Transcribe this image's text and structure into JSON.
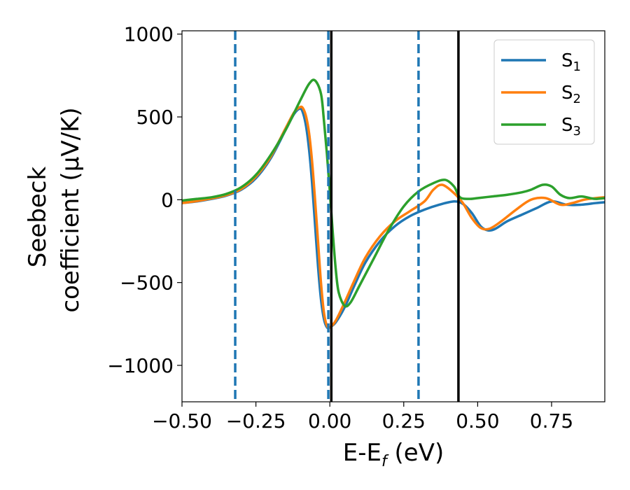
{
  "chart_data": {
    "type": "line",
    "xlabel": "E-E",
    "xlabel_sub": "f",
    "xlabel_unit": " (eV)",
    "ylabel_line1": "Seebeck",
    "ylabel_line2": "coefficient  (μV/K)",
    "xlim": [
      -0.5,
      0.93
    ],
    "ylim": [
      -1220,
      1020
    ],
    "xticks": [
      -0.5,
      -0.25,
      0.0,
      0.25,
      0.5,
      0.75
    ],
    "xtick_labels": [
      "−0.50",
      "−0.25",
      "0.00",
      "0.25",
      "0.50",
      "0.75"
    ],
    "yticks": [
      1000,
      500,
      0,
      -500,
      -1000
    ],
    "ytick_labels": [
      "1000",
      "500",
      "0",
      "−500",
      "−1000"
    ],
    "grid": false,
    "legend_position": "top-right",
    "series": [
      {
        "name": "S",
        "sub": "1",
        "color": "#1f77b4",
        "x": [
          -0.5,
          -0.45,
          -0.4,
          -0.35,
          -0.3,
          -0.25,
          -0.2,
          -0.15,
          -0.12,
          -0.1,
          -0.09,
          -0.08,
          -0.07,
          -0.06,
          -0.05,
          -0.04,
          -0.03,
          -0.02,
          -0.01,
          0.0,
          0.02,
          0.05,
          0.08,
          0.12,
          0.17,
          0.22,
          0.27,
          0.32,
          0.37,
          0.42,
          0.45,
          0.48,
          0.51,
          0.535,
          0.56,
          0.6,
          0.65,
          0.7,
          0.75,
          0.8,
          0.85,
          0.9,
          0.93
        ],
        "y": [
          -20,
          -10,
          5,
          25,
          60,
          130,
          250,
          420,
          520,
          550,
          520,
          440,
          300,
          100,
          -150,
          -400,
          -600,
          -720,
          -770,
          -770,
          -740,
          -650,
          -530,
          -380,
          -250,
          -160,
          -100,
          -60,
          -30,
          -10,
          -25,
          -80,
          -160,
          -185,
          -175,
          -130,
          -90,
          -50,
          -10,
          -30,
          -30,
          -20,
          -15
        ]
      },
      {
        "name": "S",
        "sub": "2",
        "color": "#ff7f0e",
        "x": [
          -0.5,
          -0.45,
          -0.4,
          -0.35,
          -0.3,
          -0.25,
          -0.2,
          -0.15,
          -0.12,
          -0.1,
          -0.09,
          -0.08,
          -0.07,
          -0.06,
          -0.05,
          -0.04,
          -0.03,
          -0.02,
          -0.01,
          0.0,
          0.02,
          0.05,
          0.08,
          0.12,
          0.17,
          0.22,
          0.27,
          0.32,
          0.35,
          0.38,
          0.42,
          0.45,
          0.48,
          0.51,
          0.54,
          0.58,
          0.63,
          0.68,
          0.73,
          0.78,
          0.82,
          0.86,
          0.9,
          0.93
        ],
        "y": [
          -20,
          -8,
          8,
          28,
          65,
          140,
          260,
          430,
          530,
          560,
          550,
          500,
          400,
          230,
          0,
          -250,
          -500,
          -680,
          -760,
          -770,
          -730,
          -620,
          -500,
          -350,
          -220,
          -130,
          -70,
          -10,
          60,
          90,
          40,
          -20,
          -110,
          -170,
          -175,
          -130,
          -60,
          0,
          10,
          -30,
          -20,
          0,
          10,
          15
        ]
      },
      {
        "name": "S",
        "sub": "3",
        "color": "#2ca02c",
        "x": [
          -0.5,
          -0.45,
          -0.4,
          -0.35,
          -0.3,
          -0.25,
          -0.2,
          -0.15,
          -0.1,
          -0.07,
          -0.05,
          -0.03,
          -0.02,
          -0.01,
          0.0,
          0.01,
          0.02,
          0.03,
          0.05,
          0.07,
          0.1,
          0.15,
          0.2,
          0.25,
          0.3,
          0.35,
          0.39,
          0.42,
          0.44,
          0.47,
          0.5,
          0.55,
          0.6,
          0.65,
          0.68,
          0.72,
          0.75,
          0.78,
          0.81,
          0.85,
          0.88,
          0.9,
          0.93
        ],
        "y": [
          -5,
          5,
          15,
          35,
          75,
          150,
          270,
          420,
          600,
          700,
          720,
          640,
          480,
          280,
          50,
          -200,
          -420,
          -560,
          -640,
          -620,
          -520,
          -350,
          -180,
          -40,
          50,
          100,
          120,
          80,
          15,
          5,
          10,
          20,
          30,
          45,
          60,
          90,
          80,
          30,
          10,
          20,
          10,
          5,
          10
        ]
      }
    ],
    "vlines": [
      {
        "x": -0.32,
        "style": "dashed",
        "color": "#1f77b4"
      },
      {
        "x": -0.005,
        "style": "dashed",
        "color": "#1f77b4"
      },
      {
        "x": 0.3,
        "style": "dashed",
        "color": "#1f77b4"
      },
      {
        "x": 0.005,
        "style": "solid",
        "color": "#000000"
      },
      {
        "x": 0.435,
        "style": "solid",
        "color": "#000000"
      }
    ]
  }
}
